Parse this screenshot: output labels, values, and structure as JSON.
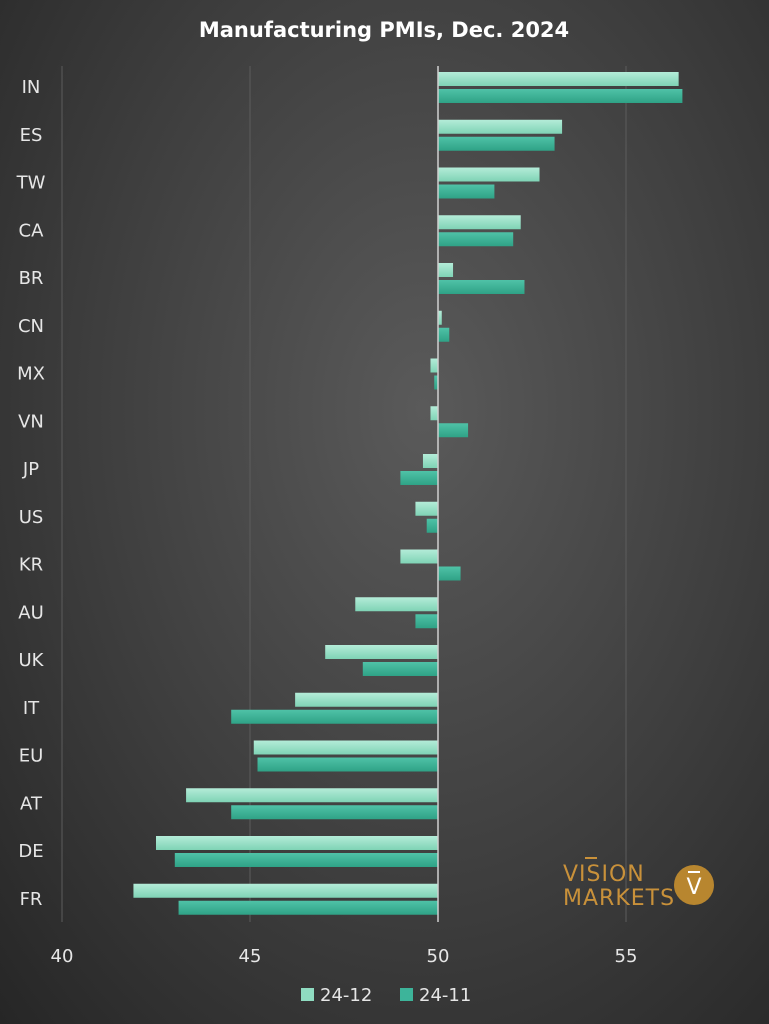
{
  "chart_data": {
    "type": "bar",
    "orientation": "horizontal",
    "title": "Manufacturing PMIs, Dec. 2024",
    "xlabel": "",
    "ylabel": "",
    "xlim": [
      40,
      57.5
    ],
    "baseline": 50,
    "xticks": [
      40,
      45,
      50,
      55
    ],
    "grid": true,
    "legend_position": "bottom",
    "categories": [
      "IN",
      "ES",
      "TW",
      "CA",
      "BR",
      "CN",
      "MX",
      "VN",
      "JP",
      "US",
      "KR",
      "AU",
      "UK",
      "IT",
      "EU",
      "AT",
      "DE",
      "FR"
    ],
    "series": [
      {
        "name": "24-12",
        "color": "#8fdcc1",
        "values": [
          56.4,
          53.3,
          52.7,
          52.2,
          50.4,
          50.1,
          49.8,
          49.8,
          49.6,
          49.4,
          49.0,
          47.8,
          47.0,
          46.2,
          45.1,
          43.3,
          42.5,
          41.9
        ]
      },
      {
        "name": "24-11",
        "color": "#3db49a",
        "values": [
          56.5,
          53.1,
          51.5,
          52.0,
          52.3,
          50.3,
          49.9,
          50.8,
          49.0,
          49.7,
          50.6,
          49.4,
          48.0,
          44.5,
          45.2,
          44.5,
          43.0,
          43.1
        ]
      }
    ]
  },
  "logo": {
    "line1": "VISION",
    "line2": "MARKETS",
    "mark": "V"
  }
}
